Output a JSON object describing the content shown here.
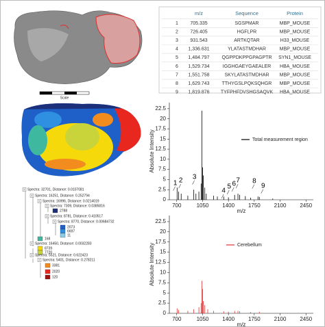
{
  "table": {
    "headers": [
      "",
      "m/z",
      "Sequence",
      "Protein"
    ],
    "rows": [
      [
        "1",
        "705.335",
        "SGSPMAR",
        "MBP_MOUSE"
      ],
      [
        "2",
        "726.405",
        "HGFLPR",
        "MBP_MOUSE"
      ],
      [
        "3",
        "931.543",
        "ARTKQTAR",
        "H33_MOUSE"
      ],
      [
        "4",
        "1,336.631",
        "YLATASTMDHAR",
        "MBP_MOUSE"
      ],
      [
        "5",
        "1,484.797",
        "QGPPDKPPGPAGPTR",
        "SYN1_MOUSE"
      ],
      [
        "6",
        "1,529.734",
        "IGGHGAEYGAEALER",
        "HBA_MOUSE"
      ],
      [
        "7",
        "1,551.758",
        "SKYLATASTMDHAR",
        "MBP_MOUSE"
      ],
      [
        "8",
        "1,629.743",
        "TTHYGSLPQKSQHGR",
        "MBP_MOUSE"
      ],
      [
        "9",
        "1,819.876",
        "TYFPHFDVSHGSAQVK",
        "HBA_MOUSE"
      ]
    ]
  },
  "scale_label": "Scale",
  "tree": {
    "nodes": [
      {
        "label": "Spectra: 32701, Distance: 0.0107081"
      },
      {
        "label": "Spectra: 16251, Distance: 0.252794"
      },
      {
        "label": "Spectra: 16996, Distance: 0.0214019"
      },
      {
        "label": "Spectra: 7309, Distance: 0.0385816"
      },
      {
        "label": "2788",
        "color": "#1c2f7a"
      },
      {
        "label": "Spectra: 8781, Distance: 0.410517"
      },
      {
        "label": "Spectra: 8770, Distance: 0.00684732"
      },
      {
        "label": "2073",
        "color": "#1f5fc8"
      },
      {
        "label": "6697",
        "color": "#2f8fe0"
      },
      {
        "label": "11",
        "color": "#8ecae6"
      },
      {
        "label": "168",
        "color": "#3fb8a0"
      },
      {
        "label": "Spectra: 16450, Distance: 0.0032283"
      },
      {
        "label": "8739",
        "color": "#f5d90a"
      },
      {
        "label": "7720",
        "color": "#c8d43a"
      },
      {
        "label": "Spectra: 5521, Distance: 0.622423"
      },
      {
        "label": "Spectra: 5401, Distance: 0.278211"
      },
      {
        "label": "3381",
        "color": "#f28c1e"
      },
      {
        "label": "2020",
        "color": "#e8281e"
      },
      {
        "label": "120",
        "color": "#9c1010"
      }
    ]
  },
  "chart_data": [
    {
      "type": "stem",
      "xlabel": "m/z",
      "ylabel": "Absolute Intensity",
      "series": [
        {
          "name": "Total measurement region",
          "color": "#000000",
          "x": [
            705,
            726,
            760,
            850,
            931,
            960,
            1000,
            1030,
            1040,
            1050,
            1060,
            1080,
            1100,
            1200,
            1250,
            1336,
            1400,
            1484,
            1529,
            1551,
            1629,
            1700,
            1800,
            1819,
            2000
          ],
          "values": [
            3,
            2,
            1.5,
            1,
            2.5,
            1.5,
            2,
            4,
            22,
            8,
            6,
            3,
            1.5,
            1,
            0.8,
            0.8,
            0.6,
            1.2,
            1.5,
            1.2,
            0.9,
            0.5,
            0.8,
            0.7,
            0.3
          ]
        }
      ],
      "annotations": [
        {
          "text": "1",
          "x": 680,
          "y": 3.1
        },
        {
          "text": "2",
          "x": 755,
          "y": 3.7
        },
        {
          "text": "3",
          "x": 940,
          "y": 4.6
        },
        {
          "text": "4",
          "x": 1335,
          "y": 1.2
        },
        {
          "text": "5",
          "x": 1410,
          "y": 2.2
        },
        {
          "text": "6",
          "x": 1475,
          "y": 2.9
        },
        {
          "text": "7",
          "x": 1530,
          "y": 3.7
        },
        {
          "text": "8",
          "x": 1750,
          "y": 3.6
        },
        {
          "text": "9",
          "x": 1870,
          "y": 2.4
        }
      ],
      "xlim": [
        600,
        2550
      ],
      "ylim": [
        0,
        24
      ],
      "xticks": [
        700,
        1050,
        1400,
        1750,
        2100,
        2450
      ],
      "yticks": [
        0,
        2.5,
        5,
        7.5,
        10,
        12.5,
        15,
        17.5,
        20,
        22.5
      ]
    },
    {
      "type": "stem",
      "xlabel": "m/z",
      "ylabel": "Absolute Intensity",
      "series": [
        {
          "name": "Cerebellum",
          "color": "#e03030",
          "x": [
            705,
            726,
            850,
            931,
            1000,
            1030,
            1040,
            1050,
            1060,
            1080,
            1120,
            1200,
            1336,
            1400,
            1484,
            1529,
            1551,
            1700,
            1819
          ],
          "values": [
            1.2,
            0.8,
            0.6,
            1,
            1.5,
            2.5,
            8,
            6,
            3,
            2,
            1,
            0.6,
            0.5,
            0.4,
            0.6,
            0.6,
            0.5,
            0.3,
            0.4
          ]
        }
      ],
      "xlim": [
        600,
        2550
      ],
      "ylim": [
        0,
        24
      ],
      "xticks": [
        700,
        1050,
        1400,
        1750,
        2100,
        2450
      ],
      "yticks": [
        0,
        2.5,
        5,
        7.5,
        10,
        12.5,
        15,
        17.5,
        20,
        22.5
      ]
    }
  ]
}
